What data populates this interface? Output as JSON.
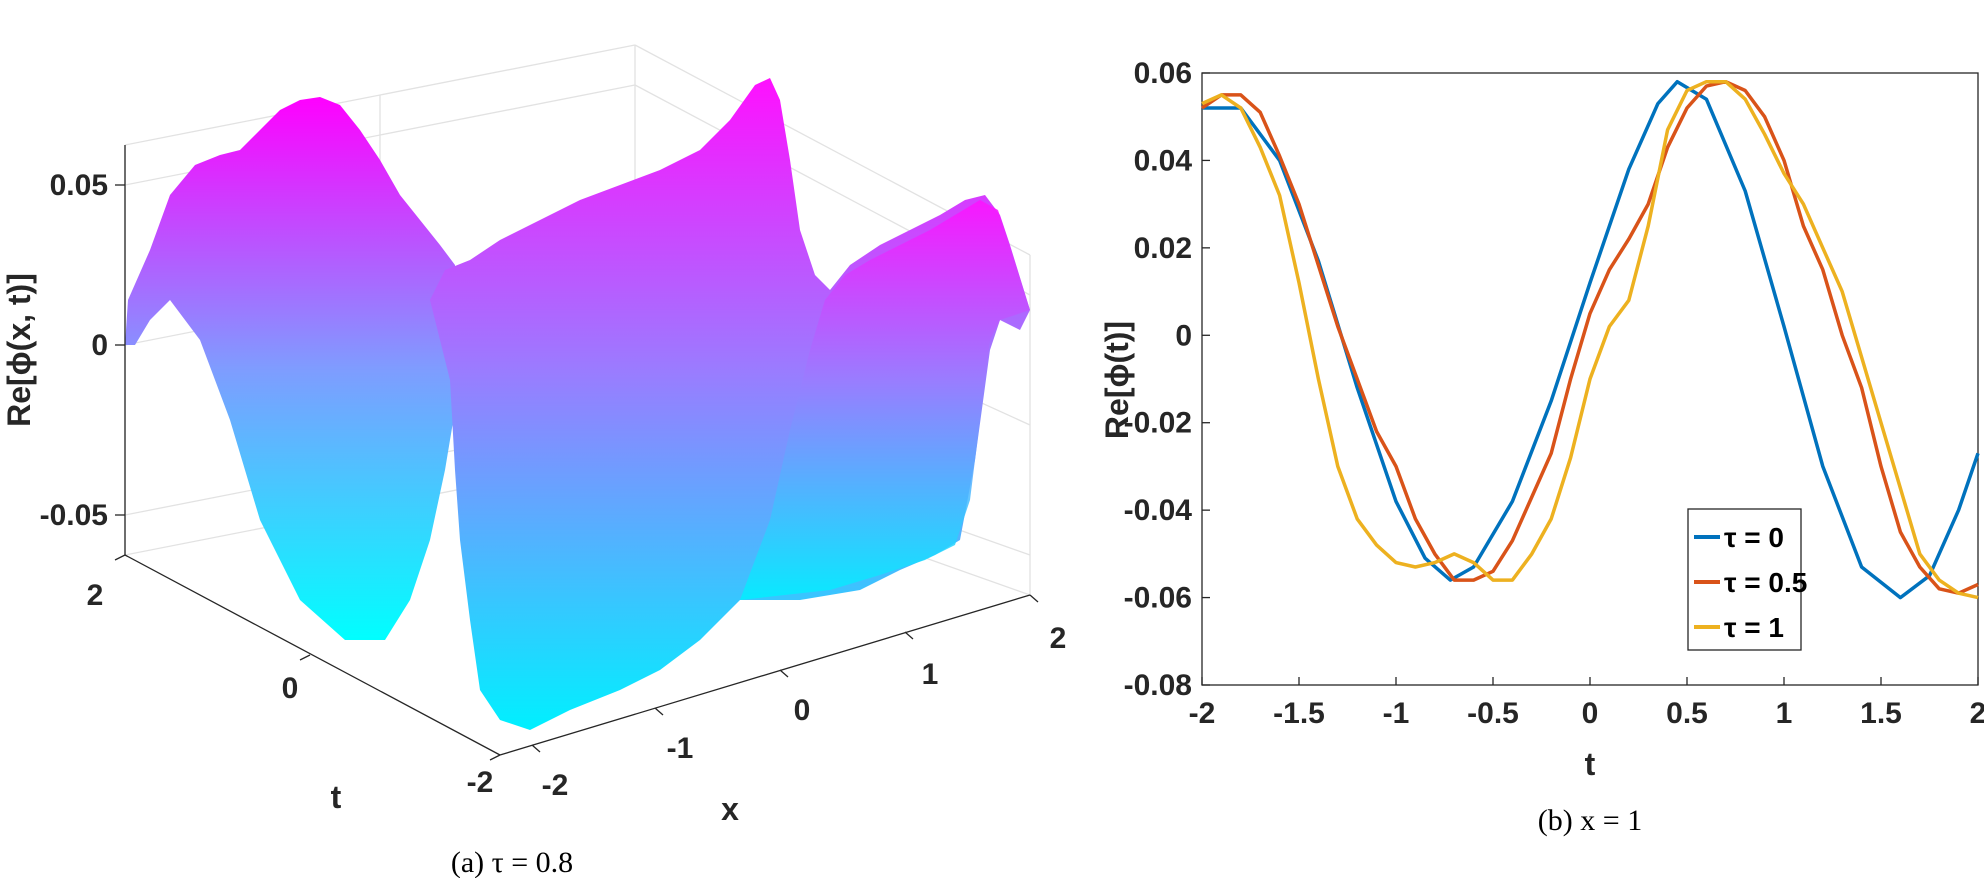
{
  "chart_data": [
    {
      "type": "surface",
      "caption": "(a) τ = 0.8",
      "title": "",
      "xlabel": "x",
      "ylabel": "t",
      "zlabel": "Re[ϕ(x, t)]",
      "xlim": [
        -2,
        2
      ],
      "ylim": [
        -2,
        2
      ],
      "zlim": [
        -0.06,
        0.06
      ],
      "xticks": [
        "-2",
        "-1",
        "0",
        "1",
        "2"
      ],
      "yticks": [
        "-2",
        "0",
        "2"
      ],
      "zticks": [
        "-0.05",
        "0",
        "0.05"
      ],
      "colormap": {
        "low": "#00ffff",
        "high": "#ff00ff"
      },
      "grid": true
    },
    {
      "type": "line",
      "caption": "(b) x = 1",
      "title": "",
      "xlabel": "t",
      "ylabel": "Re[ϕ(t)]",
      "xlim": [
        -2,
        2
      ],
      "ylim": [
        -0.08,
        0.06
      ],
      "xticks": [
        "-2",
        "-1.5",
        "-1",
        "-0.5",
        "0",
        "0.5",
        "1",
        "1.5",
        "2"
      ],
      "yticks": [
        "-0.08",
        "-0.06",
        "-0.04",
        "-0.02",
        "0",
        "0.02",
        "0.04",
        "0.06"
      ],
      "legend_position": "bottom-right",
      "grid": false,
      "series": [
        {
          "name": "τ = 0",
          "color": "#0072BD",
          "x": [
            -2,
            -1.8,
            -1.6,
            -1.4,
            -1.2,
            -1.0,
            -0.85,
            -0.72,
            -0.6,
            -0.4,
            -0.2,
            0,
            0.2,
            0.35,
            0.45,
            0.6,
            0.8,
            1.0,
            1.2,
            1.4,
            1.6,
            1.75,
            1.9,
            2.0
          ],
          "y": [
            0.052,
            0.052,
            0.04,
            0.017,
            -0.012,
            -0.038,
            -0.051,
            -0.056,
            -0.053,
            -0.038,
            -0.015,
            0.012,
            0.038,
            0.053,
            0.058,
            0.054,
            0.033,
            0.002,
            -0.03,
            -0.053,
            -0.06,
            -0.055,
            -0.04,
            -0.027
          ]
        },
        {
          "name": "τ = 0.5",
          "color": "#D95319",
          "x": [
            -2,
            -1.9,
            -1.8,
            -1.7,
            -1.6,
            -1.5,
            -1.4,
            -1.3,
            -1.2,
            -1.1,
            -1.0,
            -0.9,
            -0.8,
            -0.7,
            -0.6,
            -0.5,
            -0.4,
            -0.3,
            -0.2,
            -0.1,
            0,
            0.1,
            0.2,
            0.3,
            0.4,
            0.5,
            0.6,
            0.7,
            0.8,
            0.9,
            1.0,
            1.1,
            1.2,
            1.3,
            1.4,
            1.5,
            1.6,
            1.7,
            1.8,
            1.9,
            2.0
          ],
          "y": [
            0.052,
            0.055,
            0.055,
            0.051,
            0.041,
            0.03,
            0.016,
            0.002,
            -0.01,
            -0.022,
            -0.03,
            -0.042,
            -0.05,
            -0.056,
            -0.056,
            -0.054,
            -0.047,
            -0.037,
            -0.027,
            -0.01,
            0.005,
            0.015,
            0.022,
            0.03,
            0.043,
            0.052,
            0.057,
            0.058,
            0.056,
            0.05,
            0.04,
            0.025,
            0.015,
            0.0,
            -0.012,
            -0.03,
            -0.045,
            -0.053,
            -0.058,
            -0.059,
            -0.057
          ]
        },
        {
          "name": "τ = 1",
          "color": "#EDB120",
          "x": [
            -2,
            -1.9,
            -1.8,
            -1.7,
            -1.6,
            -1.5,
            -1.4,
            -1.3,
            -1.2,
            -1.1,
            -1.0,
            -0.9,
            -0.8,
            -0.7,
            -0.6,
            -0.5,
            -0.4,
            -0.3,
            -0.2,
            -0.1,
            0,
            0.1,
            0.2,
            0.3,
            0.4,
            0.5,
            0.6,
            0.7,
            0.8,
            0.9,
            1.0,
            1.1,
            1.2,
            1.3,
            1.4,
            1.5,
            1.6,
            1.7,
            1.8,
            1.9,
            2.0
          ],
          "y": [
            0.053,
            0.055,
            0.052,
            0.043,
            0.032,
            0.012,
            -0.01,
            -0.03,
            -0.042,
            -0.048,
            -0.052,
            -0.053,
            -0.052,
            -0.05,
            -0.052,
            -0.056,
            -0.056,
            -0.05,
            -0.042,
            -0.028,
            -0.01,
            0.002,
            0.008,
            0.025,
            0.047,
            0.056,
            0.058,
            0.058,
            0.054,
            0.046,
            0.037,
            0.03,
            0.02,
            0.01,
            -0.005,
            -0.02,
            -0.035,
            -0.05,
            -0.056,
            -0.059,
            -0.06
          ]
        }
      ]
    }
  ]
}
